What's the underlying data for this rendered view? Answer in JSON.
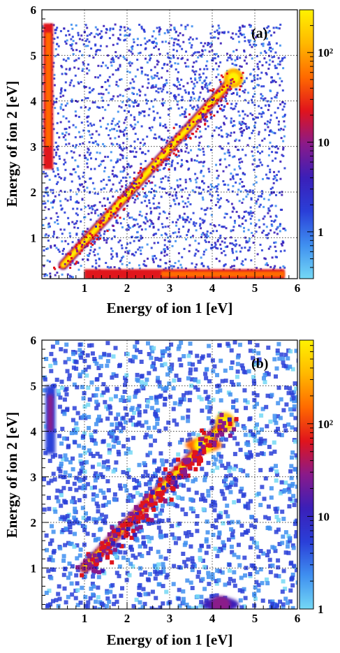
{
  "colors": {
    "scale": [
      "#74d8f5",
      "#3f8ff0",
      "#2a3fd8",
      "#3a1fb8",
      "#8a1a8a",
      "#e0141c",
      "#ff6a00",
      "#ffb800",
      "#fff200"
    ],
    "grid": "#000000",
    "frame": "#000000"
  },
  "chart_data": [
    {
      "type": "heatmap",
      "panel_label": "(a)",
      "xlabel": "Energy of ion 1 [eV]",
      "ylabel": "Energy of ion 2 [eV]",
      "xlim": [
        0,
        6
      ],
      "ylim": [
        0.1,
        6
      ],
      "x_ticks": [
        "1",
        "2",
        "3",
        "4",
        "5",
        "6"
      ],
      "y_ticks": [
        "1",
        "2",
        "3",
        "4",
        "5",
        "6"
      ],
      "grid": true,
      "colorbar": {
        "scale": "log",
        "range": [
          0.3,
          300
        ],
        "ticks": [
          "1",
          "10",
          "10²"
        ]
      },
      "features": [
        {
          "feature": "diagonal band",
          "from": [
            0.5,
            0.4
          ],
          "to": [
            4.5,
            4.5
          ],
          "peak_counts": 250
        },
        {
          "feature": "vertical band at low ion 1 energy",
          "x": 0.15,
          "y_range": [
            2.5,
            5.7
          ],
          "peak_counts": 60
        },
        {
          "feature": "horizontal band at low ion 2 energy",
          "y": 0.2,
          "x_range": [
            1.0,
            5.7
          ],
          "peak_counts": 60
        },
        {
          "feature": "diffuse background",
          "x_range": [
            0,
            5.7
          ],
          "y_range": [
            0.1,
            5.7
          ],
          "typical_counts": 1
        }
      ]
    },
    {
      "type": "heatmap",
      "panel_label": "(b)",
      "xlabel": "Energy of ion 1 [eV]",
      "ylabel": "Energy of ion 2 [eV]",
      "xlim": [
        0,
        6
      ],
      "ylim": [
        0.1,
        6
      ],
      "x_ticks": [
        "1",
        "2",
        "3",
        "4",
        "5",
        "6"
      ],
      "y_ticks": [
        "1",
        "2",
        "3",
        "4",
        "5",
        "6"
      ],
      "grid": true,
      "colorbar": {
        "scale": "log",
        "range": [
          1,
          800
        ],
        "ticks": [
          "1",
          "10",
          "10²"
        ]
      },
      "features": [
        {
          "feature": "diagonal band",
          "from": [
            1.0,
            1.0
          ],
          "to": [
            4.3,
            4.2
          ],
          "peak_counts": 600
        },
        {
          "feature": "hot spot",
          "x": 3.8,
          "y": 3.7,
          "peak_counts": 700
        },
        {
          "feature": "horizontal blob at low ion 2 energy",
          "x": 4.2,
          "y": 0.2,
          "peak_counts": 40
        },
        {
          "feature": "band at low ion 1 energy",
          "x": 0.2,
          "y_range": [
            3.5,
            5.0
          ],
          "peak_counts": 20
        },
        {
          "feature": "diffuse background",
          "x_range": [
            0,
            6
          ],
          "y_range": [
            0.1,
            6
          ],
          "typical_counts": 2
        }
      ]
    }
  ]
}
